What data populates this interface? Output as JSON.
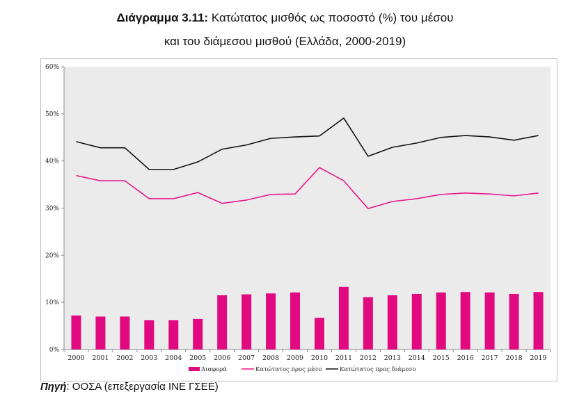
{
  "title": {
    "prefix": "Διάγραμμα 3.11:",
    "line1": " Κατώτατος μισθός ως ποσοστό (%) του μέσου",
    "line2": "και του διάμεσου μισθού (Ελλάδα, 2000-2019)"
  },
  "source": {
    "label": "Πηγή",
    "text": ": ΟΟΣΑ (επεξεργασία ΙΝΕ ΓΣΕΕ)"
  },
  "chart_data": {
    "type": "bar+line",
    "categories": [
      "2000",
      "2001",
      "2002",
      "2003",
      "2004",
      "2005",
      "2006",
      "2007",
      "2008",
      "2009",
      "2010",
      "2011",
      "2012",
      "2013",
      "2014",
      "2015",
      "2016",
      "2017",
      "2018",
      "2019"
    ],
    "ylim": [
      0,
      60
    ],
    "yticks": [
      "0%",
      "10%",
      "20%",
      "30%",
      "40%",
      "50%",
      "60%"
    ],
    "grid": false,
    "legend_position": "bottom",
    "series": [
      {
        "name": "Διαφορά",
        "kind": "bar",
        "color": "#e0097f",
        "values": [
          7.2,
          7.0,
          7.0,
          6.2,
          6.2,
          6.5,
          11.5,
          11.7,
          11.9,
          12.1,
          6.7,
          13.3,
          11.1,
          11.5,
          11.8,
          12.1,
          12.2,
          12.1,
          11.8,
          12.2
        ]
      },
      {
        "name": "Κατώτατος προς μέσο",
        "kind": "line",
        "color": "#e8168a",
        "values": [
          36.9,
          35.8,
          35.8,
          32.0,
          32.0,
          33.3,
          31.0,
          31.7,
          32.9,
          33.0,
          38.6,
          35.8,
          29.9,
          31.4,
          32.0,
          32.9,
          33.2,
          33.0,
          32.6,
          33.2
        ]
      },
      {
        "name": "Κατώτατος προς διάμεσο",
        "kind": "line",
        "color": "#111111",
        "values": [
          44.1,
          42.8,
          42.8,
          38.2,
          38.2,
          39.8,
          42.5,
          43.4,
          44.8,
          45.1,
          45.3,
          49.1,
          41.0,
          42.9,
          43.8,
          45.0,
          45.4,
          45.1,
          44.4,
          45.4
        ]
      }
    ]
  }
}
